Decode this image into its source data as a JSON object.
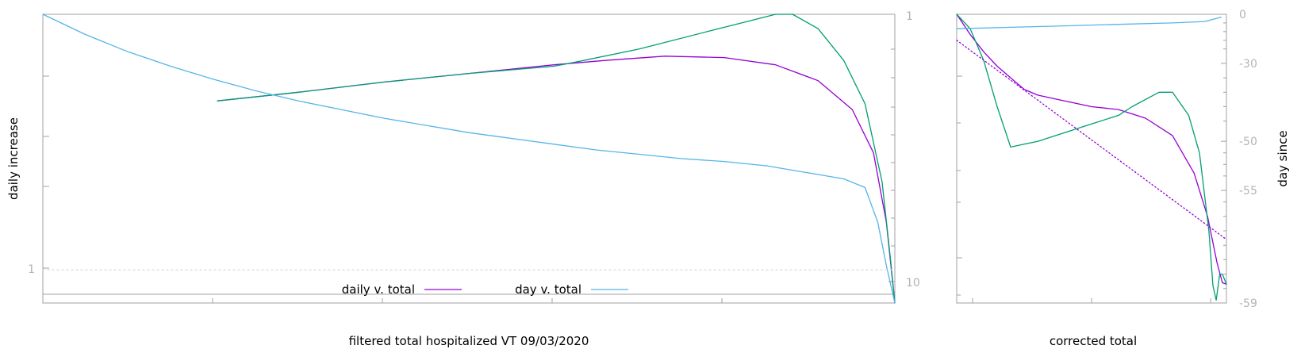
{
  "chart_data": [
    {
      "type": "line",
      "xlabel": "filtered total hospitalized VT 09/03/2020",
      "ylabel": "daily increase",
      "left_y_ticks": [
        "1"
      ],
      "right_y_ticks": [
        "1",
        "10"
      ],
      "legend": {
        "placement": "bottom-center",
        "entries": [
          {
            "label": "daily v. total",
            "color": "#9400d3"
          },
          {
            "label": "day v. total",
            "color": "#56b4e9"
          }
        ]
      },
      "series": [
        {
          "color": "#9400d3",
          "points": [
            [
              0.205,
              0.3
            ],
            [
              0.3,
              0.27
            ],
            [
              0.4,
              0.235
            ],
            [
              0.5,
              0.205
            ],
            [
              0.6,
              0.175
            ],
            [
              0.66,
              0.16
            ],
            [
              0.73,
              0.145
            ],
            [
              0.8,
              0.15
            ],
            [
              0.86,
              0.175
            ],
            [
              0.91,
              0.23
            ],
            [
              0.95,
              0.33
            ],
            [
              0.975,
              0.48
            ],
            [
              0.99,
              0.72
            ],
            [
              1.0,
              1.0
            ]
          ]
        },
        {
          "color": "#009e73",
          "points": [
            [
              0.205,
              0.3
            ],
            [
              0.3,
              0.27
            ],
            [
              0.4,
              0.235
            ],
            [
              0.5,
              0.205
            ],
            [
              0.6,
              0.18
            ],
            [
              0.63,
              0.163
            ],
            [
              0.7,
              0.12
            ],
            [
              0.78,
              0.06
            ],
            [
              0.84,
              0.015
            ],
            [
              0.86,
              0.0
            ],
            [
              0.88,
              0.0
            ],
            [
              0.91,
              0.05
            ],
            [
              0.94,
              0.16
            ],
            [
              0.965,
              0.31
            ],
            [
              0.985,
              0.58
            ],
            [
              0.995,
              0.85
            ],
            [
              1.0,
              1.0
            ]
          ]
        },
        {
          "color": "#56b4e9",
          "points": [
            [
              0.0,
              0.0
            ],
            [
              0.05,
              0.07
            ],
            [
              0.1,
              0.13
            ],
            [
              0.15,
              0.18
            ],
            [
              0.2,
              0.225
            ],
            [
              0.25,
              0.265
            ],
            [
              0.3,
              0.3
            ],
            [
              0.35,
              0.33
            ],
            [
              0.4,
              0.36
            ],
            [
              0.45,
              0.385
            ],
            [
              0.5,
              0.41
            ],
            [
              0.55,
              0.43
            ],
            [
              0.6,
              0.45
            ],
            [
              0.65,
              0.47
            ],
            [
              0.7,
              0.485
            ],
            [
              0.75,
              0.5
            ],
            [
              0.8,
              0.51
            ],
            [
              0.85,
              0.525
            ],
            [
              0.88,
              0.54
            ],
            [
              0.91,
              0.555
            ],
            [
              0.94,
              0.57
            ],
            [
              0.965,
              0.6
            ],
            [
              0.98,
              0.72
            ],
            [
              0.99,
              0.87
            ],
            [
              1.0,
              1.0
            ]
          ]
        },
        {
          "color": "#d8d8d8",
          "dashed": true,
          "points": [
            [
              0.0,
              0.885
            ],
            [
              1.0,
              0.885
            ]
          ]
        }
      ]
    },
    {
      "type": "line",
      "xlabel": "corrected total",
      "ylabel": "day since",
      "right_y_ticks": [
        "0",
        "-30",
        "-50",
        "-55",
        "-59"
      ],
      "right_y_positions": [
        0.0,
        0.17,
        0.44,
        0.61,
        1.0
      ],
      "series": [
        {
          "color": "#9400d3",
          "points": [
            [
              0.0,
              0.0
            ],
            [
              0.05,
              0.07
            ],
            [
              0.1,
              0.13
            ],
            [
              0.15,
              0.18
            ],
            [
              0.2,
              0.22
            ],
            [
              0.25,
              0.26
            ],
            [
              0.3,
              0.28
            ],
            [
              0.4,
              0.3
            ],
            [
              0.5,
              0.32
            ],
            [
              0.6,
              0.33
            ],
            [
              0.7,
              0.36
            ],
            [
              0.8,
              0.42
            ],
            [
              0.88,
              0.55
            ],
            [
              0.93,
              0.7
            ],
            [
              0.965,
              0.86
            ],
            [
              0.985,
              0.93
            ],
            [
              1.0,
              0.935
            ]
          ]
        },
        {
          "color": "#009e73",
          "points": [
            [
              0.0,
              0.0
            ],
            [
              0.05,
              0.05
            ],
            [
              0.1,
              0.16
            ],
            [
              0.15,
              0.32
            ],
            [
              0.2,
              0.46
            ],
            [
              0.25,
              0.45
            ],
            [
              0.3,
              0.44
            ],
            [
              0.4,
              0.41
            ],
            [
              0.5,
              0.38
            ],
            [
              0.6,
              0.35
            ],
            [
              0.65,
              0.32
            ],
            [
              0.75,
              0.27
            ],
            [
              0.8,
              0.27
            ],
            [
              0.86,
              0.35
            ],
            [
              0.9,
              0.48
            ],
            [
              0.935,
              0.75
            ],
            [
              0.95,
              0.94
            ],
            [
              0.962,
              0.99
            ],
            [
              0.975,
              0.9
            ],
            [
              0.985,
              0.9
            ],
            [
              1.0,
              0.935
            ]
          ]
        },
        {
          "color": "#56b4e9",
          "points": [
            [
              0.0,
              0.05
            ],
            [
              0.2,
              0.045
            ],
            [
              0.4,
              0.04
            ],
            [
              0.6,
              0.035
            ],
            [
              0.8,
              0.03
            ],
            [
              0.92,
              0.025
            ],
            [
              0.96,
              0.015
            ],
            [
              0.98,
              0.01
            ]
          ]
        },
        {
          "color": "#9400d3",
          "dotted": true,
          "points": [
            [
              0.0,
              0.09
            ],
            [
              1.0,
              0.78
            ]
          ]
        }
      ]
    }
  ]
}
